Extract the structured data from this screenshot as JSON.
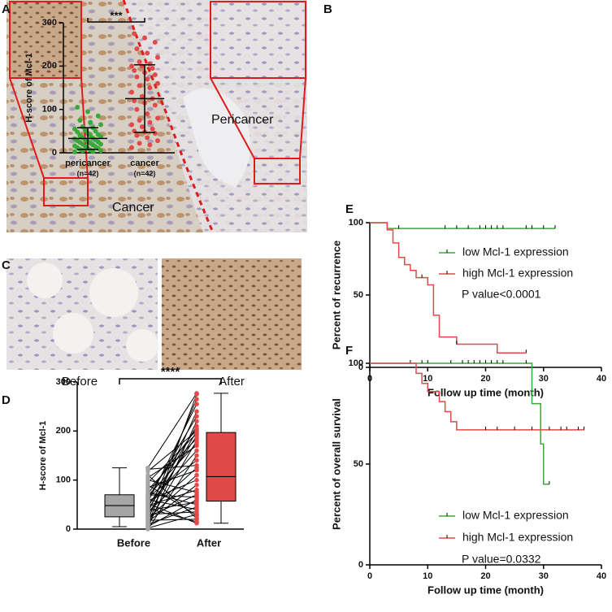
{
  "panel_labels": [
    "A",
    "B",
    "C",
    "D",
    "E",
    "F"
  ],
  "image_labels": {
    "pericancer": "Pericancer",
    "cancer": "Cancer",
    "before": "Before",
    "after": "After"
  },
  "chart_data": [
    {
      "type": "dotplot",
      "annotation": "***",
      "ylabel": "H-score of Mcl-1",
      "categories": [
        "pericancer",
        "cancer"
      ],
      "category_sublabels": [
        "(n=42)",
        "(n=42)"
      ],
      "ylim": [
        0,
        300
      ],
      "yticks": [
        0,
        100,
        200,
        300
      ],
      "groups": [
        {
          "color": "#3aa83a",
          "mean": 33,
          "sd": 25,
          "values": [
            2,
            3,
            5,
            5,
            6,
            8,
            10,
            10,
            12,
            14,
            15,
            16,
            18,
            20,
            20,
            22,
            24,
            25,
            26,
            28,
            30,
            30,
            32,
            34,
            35,
            38,
            40,
            40,
            42,
            45,
            48,
            50,
            52,
            55,
            58,
            60,
            65,
            70,
            75,
            85,
            95,
            105
          ]
        },
        {
          "color": "#e24a4a",
          "mean": 125,
          "sd": 78,
          "values": [
            12,
            18,
            22,
            28,
            35,
            40,
            45,
            48,
            50,
            55,
            60,
            65,
            70,
            75,
            80,
            90,
            100,
            110,
            115,
            120,
            125,
            130,
            140,
            150,
            155,
            160,
            170,
            175,
            180,
            185,
            190,
            195,
            200,
            200,
            205,
            210,
            220,
            230,
            240,
            255,
            265,
            275
          ]
        }
      ]
    },
    {
      "type": "paired_box",
      "annotation": "****",
      "ylabel": "H-score of Mcl-1",
      "categories": [
        "Before",
        "After"
      ],
      "ylim": [
        0,
        300
      ],
      "yticks": [
        0,
        100,
        200,
        300
      ],
      "groups": [
        {
          "color": "#a6a6a6",
          "box": {
            "min": 5,
            "q1": 25,
            "median": 48,
            "q3": 70,
            "max": 125
          },
          "values": [
            0,
            2,
            4,
            5,
            8,
            10,
            12,
            15,
            18,
            20,
            22,
            25,
            28,
            30,
            32,
            35,
            38,
            40,
            42,
            45,
            48,
            50,
            52,
            55,
            58,
            60,
            62,
            65,
            68,
            70,
            72,
            75,
            80,
            85,
            90,
            95,
            100,
            105,
            110,
            118,
            122,
            125
          ]
        },
        {
          "color": "#e24a4a",
          "box": {
            "min": 12,
            "q1": 57,
            "median": 107,
            "q3": 197,
            "max": 277
          },
          "values": [
            150,
            30,
            220,
            60,
            275,
            45,
            180,
            90,
            20,
            240,
            110,
            70,
            200,
            35,
            265,
            125,
            55,
            190,
            15,
            210,
            80,
            160,
            12,
            255,
            100,
            40,
            230,
            140,
            175,
            65,
            205,
            50,
            185,
            120,
            28,
            195,
            75,
            170,
            22,
            200,
            130,
            277
          ]
        }
      ]
    },
    {
      "type": "km",
      "ylabel": "Percent of recurrence",
      "xlabel": "Follow up time (month)",
      "annotation": "P value<0.0001",
      "xlim": [
        0,
        40
      ],
      "xticks": [
        0,
        10,
        20,
        30,
        40
      ],
      "ylim": [
        0,
        100
      ],
      "yticks": [
        0,
        50,
        100
      ],
      "series": [
        {
          "name": "low Mcl-1 expression",
          "color": "#3aa83a",
          "x": [
            0,
            3,
            32
          ],
          "values": [
            100,
            96,
            96
          ],
          "censored": [
            5,
            13,
            15,
            17,
            19,
            20,
            21,
            22,
            23,
            27,
            28,
            30,
            32
          ]
        },
        {
          "name": "high Mcl-1 expression",
          "color": "#e24a4a",
          "x": [
            0,
            3,
            4,
            5,
            6,
            7,
            8,
            10,
            11,
            12,
            15,
            22,
            27
          ],
          "values": [
            100,
            95,
            86,
            76,
            71,
            67,
            62,
            57,
            36,
            21,
            16,
            10,
            10
          ],
          "censored": [
            9,
            15,
            27
          ]
        }
      ]
    },
    {
      "type": "km",
      "ylabel": "Percent of overall survival",
      "xlabel": "Follow up time (month)",
      "annotation": "P value=0.0332",
      "xlim": [
        0,
        40
      ],
      "xticks": [
        0,
        10,
        20,
        30,
        40
      ],
      "ylim": [
        0,
        100
      ],
      "yticks": [
        0,
        50,
        100
      ],
      "series": [
        {
          "name": "low Mcl-1 expression",
          "color": "#3aa83a",
          "x": [
            0,
            28,
            29.5,
            30,
            31
          ],
          "values": [
            100,
            80,
            60,
            40,
            40
          ],
          "censored": [
            7,
            9,
            10,
            14,
            16,
            17,
            18,
            19,
            20,
            21,
            22,
            23,
            27,
            31
          ]
        },
        {
          "name": "high Mcl-1 expression",
          "color": "#e24a4a",
          "x": [
            0,
            8,
            9,
            10,
            12,
            13,
            14,
            15,
            37
          ],
          "values": [
            100,
            95,
            90,
            86,
            81,
            76,
            71,
            67,
            67
          ],
          "censored": [
            20,
            22,
            25,
            28,
            31,
            33,
            34,
            36,
            37
          ]
        }
      ]
    }
  ]
}
